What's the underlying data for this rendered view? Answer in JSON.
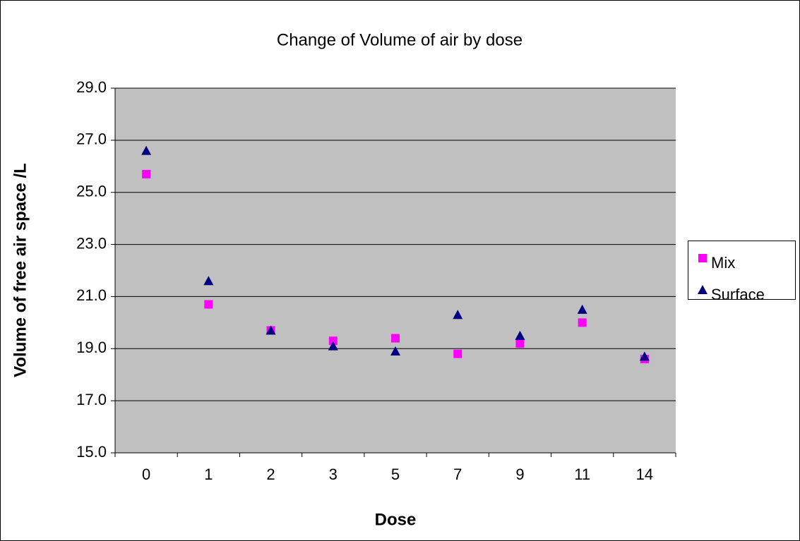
{
  "chart_data": {
    "type": "scatter",
    "title": "Change of Volume of air by dose",
    "x_label": "Dose",
    "y_label": "Volume of free air space /L",
    "categories": [
      "0",
      "1",
      "2",
      "3",
      "5",
      "7",
      "9",
      "11",
      "14"
    ],
    "series": [
      {
        "name": "Mix",
        "color": "#ff00ff",
        "marker": "square",
        "values": [
          25.7,
          20.7,
          19.7,
          19.3,
          19.4,
          18.8,
          19.2,
          20.0,
          18.6
        ]
      },
      {
        "name": "Surface",
        "color": "#000080",
        "marker": "triangle",
        "values": [
          26.6,
          21.6,
          19.7,
          19.1,
          18.9,
          20.3,
          19.5,
          20.5,
          18.7
        ]
      }
    ],
    "ylim": [
      15,
      29
    ],
    "yticks": [
      {
        "value": 15,
        "label": "15.0"
      },
      {
        "value": 17,
        "label": "17.0"
      },
      {
        "value": 19,
        "label": "19.0"
      },
      {
        "value": 21,
        "label": "21.0"
      },
      {
        "value": 23,
        "label": "23.0"
      },
      {
        "value": 25,
        "label": "25.0"
      },
      {
        "value": 27,
        "label": "27.0"
      },
      {
        "value": 29,
        "label": "29.0"
      }
    ],
    "grid": true,
    "legend": "right"
  }
}
